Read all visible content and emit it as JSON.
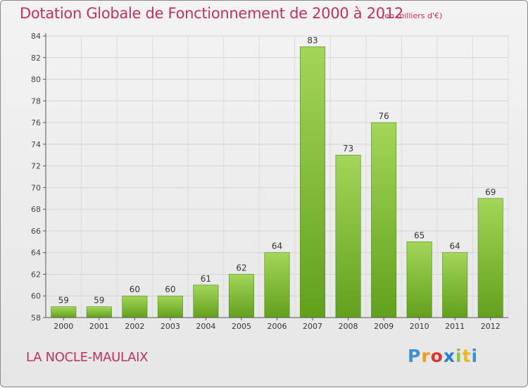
{
  "header": {
    "title": "Dotation Globale de Fonctionnement de 2000 à 2012",
    "subtitle": "(en milliers d'€)"
  },
  "footer": {
    "commune": "LA NOCLE-MAULAIX",
    "brand": "Proxiti"
  },
  "colors": {
    "title": "#c0325a",
    "bar_top": "#a3d65a",
    "bar_bottom": "#62a01c"
  },
  "chart_data": {
    "type": "bar",
    "title": "Dotation Globale de Fonctionnement de 2000 à 2012",
    "subtitle": "(en milliers d'€)",
    "categories": [
      "2000",
      "2001",
      "2002",
      "2003",
      "2004",
      "2005",
      "2006",
      "2007",
      "2008",
      "2009",
      "2010",
      "2011",
      "2012"
    ],
    "values": [
      59,
      59,
      60,
      60,
      61,
      62,
      64,
      83,
      73,
      76,
      65,
      64,
      69
    ],
    "ylim": [
      58,
      84
    ],
    "yticks": [
      58,
      60,
      62,
      64,
      66,
      68,
      70,
      72,
      74,
      76,
      78,
      80,
      82,
      84
    ],
    "xlabel": "",
    "ylabel": "",
    "grid": true,
    "data_labels": true
  }
}
